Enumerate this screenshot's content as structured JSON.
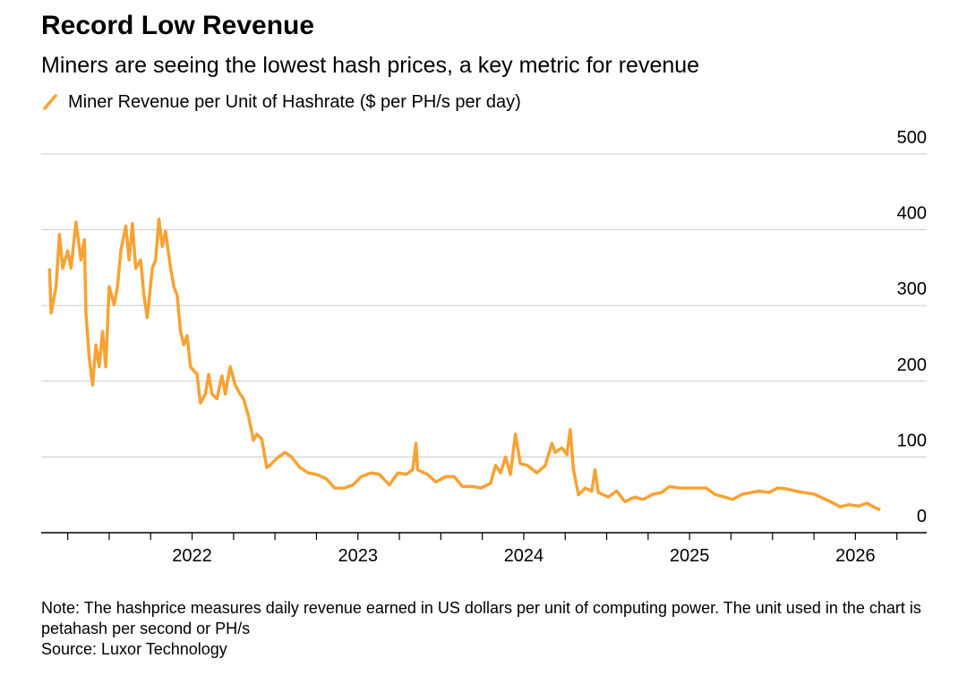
{
  "chart_data": {
    "type": "line",
    "title": "Record Low Revenue",
    "subtitle": "Miners are seeing the lowest hash prices, a key metric for revenue",
    "note": "Note: The hashprice measures daily revenue earned in US dollars per unit of computing power. The unit used in the chart is petahash per second or PH/s",
    "source": "Source: Luxor Technology",
    "x": [
      2021.14,
      2021.15,
      2021.18,
      2021.2,
      2021.22,
      2021.25,
      2021.27,
      2021.3,
      2021.33,
      2021.35,
      2021.36,
      2021.38,
      2021.4,
      2021.42,
      2021.44,
      2021.46,
      2021.48,
      2021.5,
      2021.53,
      2021.55,
      2021.57,
      2021.6,
      2021.62,
      2021.64,
      2021.66,
      2021.69,
      2021.71,
      2021.73,
      2021.76,
      2021.78,
      2021.8,
      2021.82,
      2021.84,
      2021.87,
      2021.89,
      2021.91,
      2021.93,
      2021.95,
      2021.97,
      2021.99,
      2022.03,
      2022.05,
      2022.08,
      2022.1,
      2022.12,
      2022.15,
      2022.18,
      2022.2,
      2022.23,
      2022.26,
      2022.29,
      2022.31,
      2022.34,
      2022.37,
      2022.39,
      2022.42,
      2022.45,
      2022.47,
      2022.51,
      2022.56,
      2022.6,
      2022.65,
      2022.7,
      2022.75,
      2022.81,
      2022.86,
      2022.92,
      2022.97,
      2023.02,
      2023.08,
      2023.13,
      2023.19,
      2023.24,
      2023.29,
      2023.33,
      2023.35,
      2023.36,
      2023.42,
      2023.47,
      2023.53,
      2023.58,
      2023.63,
      2023.69,
      2023.74,
      2023.8,
      2023.83,
      2023.86,
      2023.89,
      2023.92,
      2023.95,
      2023.98,
      2024.02,
      2024.08,
      2024.13,
      2024.17,
      2024.19,
      2024.23,
      2024.26,
      2024.28,
      2024.3,
      2024.33,
      2024.37,
      2024.41,
      2024.43,
      2024.45,
      2024.51,
      2024.56,
      2024.61,
      2024.67,
      2024.72,
      2024.78,
      2024.83,
      2024.88,
      2024.94,
      2025.02,
      2025.1,
      2025.15,
      2025.21,
      2025.26,
      2025.32,
      2025.37,
      2025.42,
      2025.48,
      2025.53,
      2025.58,
      2025.64,
      2025.69,
      2025.75,
      2025.8,
      2025.85,
      2025.91,
      2025.96,
      2026.02,
      2026.07,
      2026.11,
      2026.15
    ],
    "series": [
      {
        "name": "Miner Revenue per Unit of Hashrate ($ per PH/s per day)",
        "color": "#f7a233",
        "values": [
          349,
          290,
          325,
          394,
          349,
          372,
          349,
          410,
          360,
          387,
          290,
          230,
          195,
          248,
          219,
          266,
          219,
          325,
          301,
          325,
          372,
          405,
          360,
          408,
          349,
          360,
          313,
          284,
          349,
          360,
          414,
          378,
          398,
          349,
          325,
          313,
          266,
          248,
          260,
          219,
          209,
          171,
          183,
          209,
          183,
          177,
          207,
          183,
          219,
          195,
          183,
          177,
          154,
          122,
          130,
          124,
          86,
          89,
          98,
          106,
          100,
          86,
          79,
          77,
          71,
          59,
          59,
          63,
          74,
          79,
          77,
          63,
          79,
          77,
          83,
          118,
          83,
          77,
          67,
          74,
          74,
          61,
          61,
          59,
          65,
          89,
          79,
          100,
          77,
          130,
          91,
          89,
          79,
          89,
          118,
          106,
          112,
          103,
          136,
          83,
          50,
          59,
          55,
          83,
          53,
          47,
          55,
          41,
          47,
          44,
          51,
          53,
          61,
          59,
          59,
          59,
          51,
          47,
          44,
          51,
          53,
          55,
          53,
          59,
          58,
          55,
          53,
          51,
          46,
          41,
          34,
          37,
          35,
          39,
          34,
          30
        ]
      }
    ],
    "xlim": [
      2021.09,
      2026.43
    ],
    "xticks": [
      2022,
      2023,
      2024,
      2025,
      2026
    ],
    "xminor_ticks": [
      2021.25,
      2021.5,
      2021.75,
      2022.25,
      2022.5,
      2022.75,
      2023.25,
      2023.5,
      2023.75,
      2024.25,
      2024.5,
      2024.75,
      2025.25,
      2025.5,
      2025.75,
      2026.25
    ],
    "ylim": [
      0,
      500
    ],
    "yticks": [
      0,
      100,
      200,
      300,
      400,
      500
    ],
    "grid": true
  }
}
